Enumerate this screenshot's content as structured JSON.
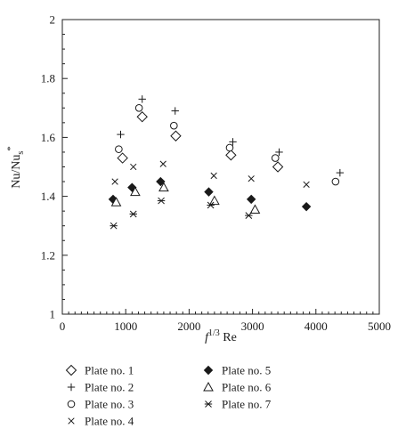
{
  "chart_data": {
    "type": "scatter",
    "title": "",
    "xlabel": "f",
    "xlabel_sup": "1/3",
    "xlabel_suffix": " Re",
    "ylabel": "Nu/Nu",
    "ylabel_sub": "s",
    "ylabel_sup": "*",
    "xlim": [
      0,
      5000
    ],
    "ylim": [
      1,
      2
    ],
    "x_ticks": [
      0,
      1000,
      2000,
      3000,
      4000,
      5000
    ],
    "y_ticks": [
      1,
      1.2,
      1.4,
      1.6,
      1.8,
      2
    ],
    "x_tick_labels": [
      "0",
      "1000",
      "2000",
      "3000",
      "4000",
      "5000"
    ],
    "y_tick_labels": [
      "1",
      "1.2",
      "1.4",
      "1.6",
      "1.8",
      "2"
    ],
    "grid": false,
    "legend_position": "bottom",
    "series": [
      {
        "name": "Plate no. 1",
        "marker": "diamond-open",
        "x": [
          950,
          1260,
          1790,
          2660,
          3400
        ],
        "y": [
          1.53,
          1.67,
          1.605,
          1.54,
          1.5
        ]
      },
      {
        "name": "Plate no. 2",
        "marker": "plus",
        "x": [
          920,
          1260,
          1780,
          2690,
          3420,
          4380
        ],
        "y": [
          1.61,
          1.73,
          1.69,
          1.585,
          1.55,
          1.48
        ]
      },
      {
        "name": "Plate no. 3",
        "marker": "circle-open",
        "x": [
          890,
          1210,
          1760,
          2640,
          3360,
          4310
        ],
        "y": [
          1.56,
          1.7,
          1.64,
          1.565,
          1.53,
          1.45
        ]
      },
      {
        "name": "Plate no. 4",
        "marker": "x",
        "x": [
          830,
          1120,
          1590,
          2390,
          2980,
          3850
        ],
        "y": [
          1.45,
          1.5,
          1.51,
          1.47,
          1.46,
          1.44
        ]
      },
      {
        "name": "Plate no. 5",
        "marker": "diamond-filled",
        "x": [
          800,
          1100,
          1550,
          2310,
          2980,
          3850
        ],
        "y": [
          1.39,
          1.43,
          1.45,
          1.415,
          1.39,
          1.365
        ]
      },
      {
        "name": "Plate no. 6",
        "marker": "triangle-open",
        "x": [
          850,
          1150,
          1600,
          2400,
          3040
        ],
        "y": [
          1.38,
          1.415,
          1.43,
          1.385,
          1.355
        ]
      },
      {
        "name": "Plate no. 7",
        "marker": "asterisk",
        "x": [
          810,
          1120,
          1560,
          2340,
          2940
        ],
        "y": [
          1.3,
          1.34,
          1.385,
          1.37,
          1.335
        ]
      }
    ]
  }
}
